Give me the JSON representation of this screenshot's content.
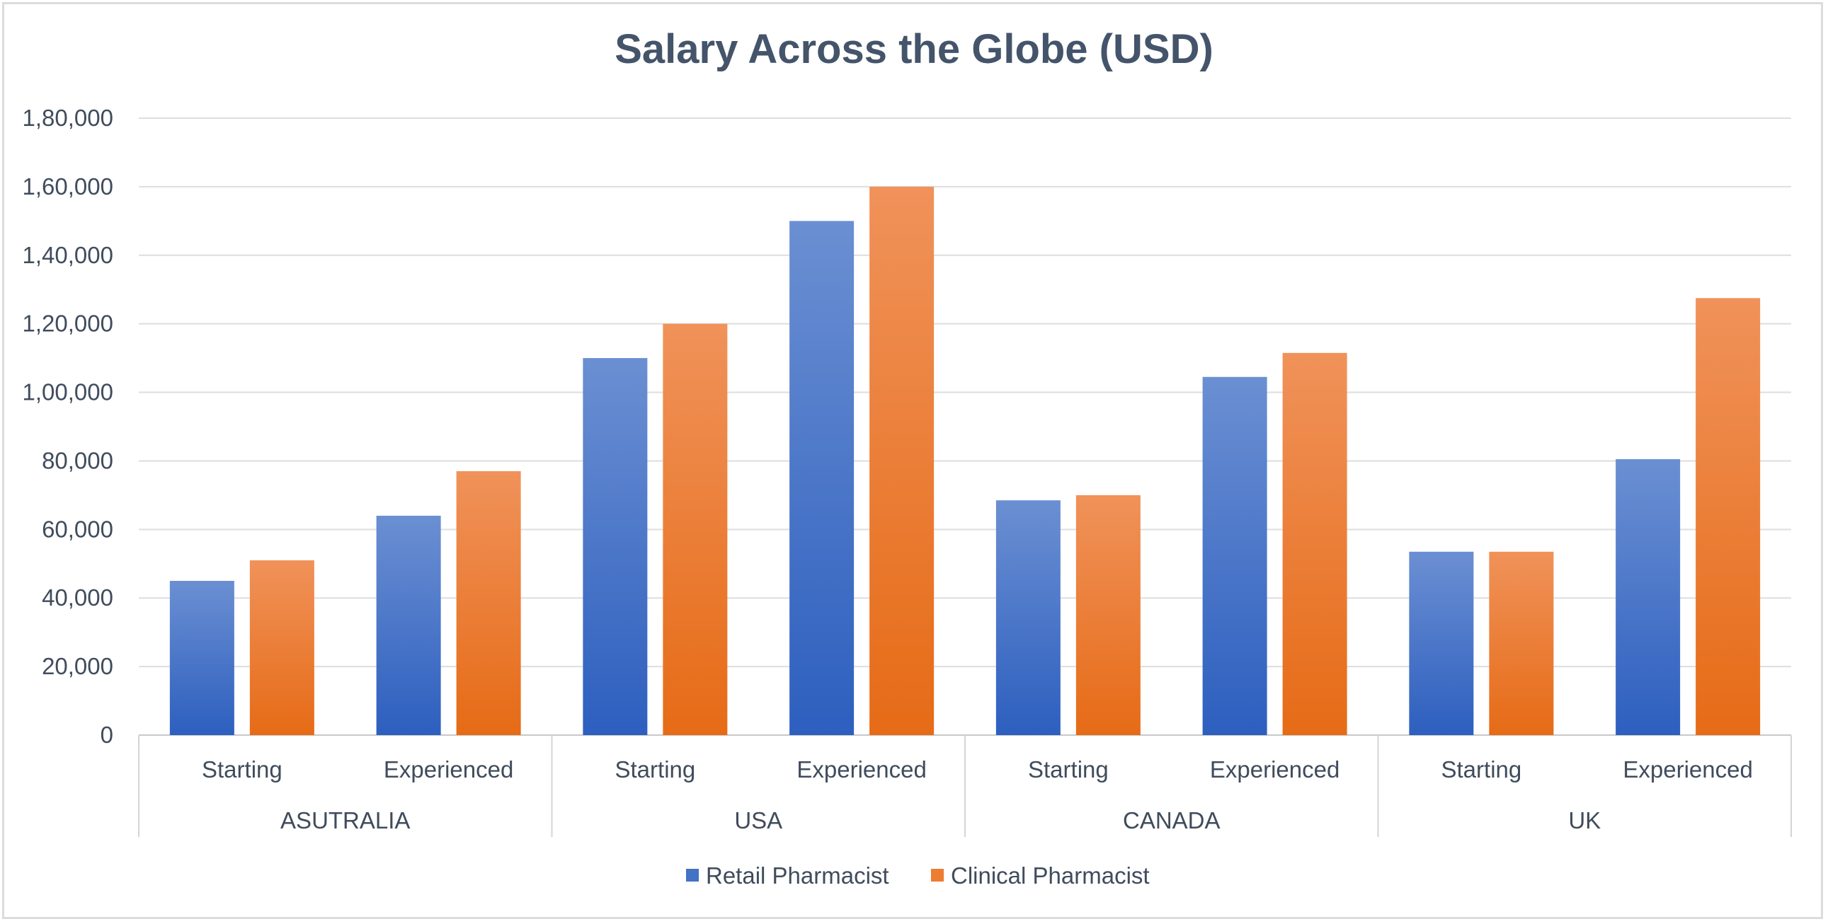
{
  "chart_data": {
    "type": "bar",
    "title": "Salary Across the Globe (USD)",
    "groups": [
      {
        "name": "ASUTRALIA",
        "categories": [
          "Starting",
          "Experienced"
        ]
      },
      {
        "name": "USA",
        "categories": [
          "Starting",
          "Experienced"
        ]
      },
      {
        "name": "CANADA",
        "categories": [
          "Starting",
          "Experienced"
        ]
      },
      {
        "name": "UK",
        "categories": [
          "Starting",
          "Experienced"
        ]
      }
    ],
    "series": [
      {
        "name": "Retail Pharmacist",
        "color": "#4472c4",
        "values": [
          45000,
          64000,
          110000,
          150000,
          68500,
          104500,
          53500,
          80500
        ]
      },
      {
        "name": "Clinical Pharmacist",
        "color": "#ed7d31",
        "values": [
          51000,
          77000,
          120000,
          160000,
          70000,
          111500,
          53500,
          127500
        ]
      }
    ],
    "ylim": [
      0,
      180000
    ],
    "yticks": [
      0,
      20000,
      40000,
      60000,
      80000,
      100000,
      120000,
      140000,
      160000,
      180000
    ],
    "ytick_labels": [
      "0",
      "20,000",
      "40,000",
      "60,000",
      "80,000",
      "1,00,000",
      "1,20,000",
      "1,40,000",
      "1,60,000",
      "1,80,000"
    ],
    "grid": true,
    "legend": "bottom"
  }
}
